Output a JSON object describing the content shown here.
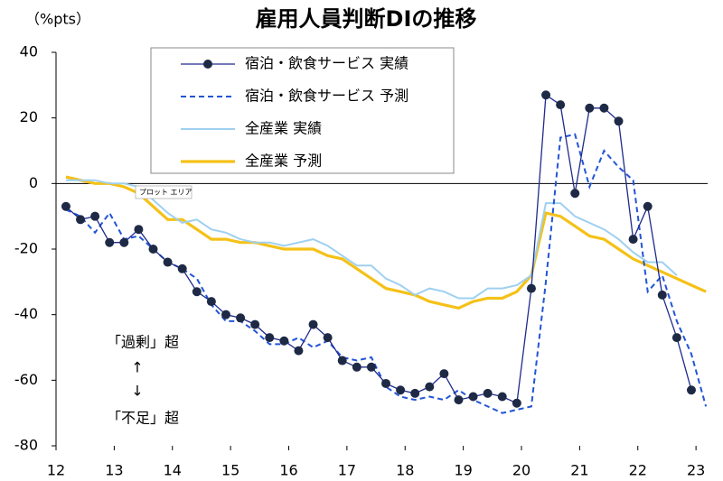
{
  "chart_data": {
    "type": "line",
    "title": "雇用人員判断DIの推移",
    "y_label": "（%pts）",
    "annotations": [
      "「過剰」超",
      "↑",
      "↓",
      "「不足」超"
    ],
    "tooltip": "プロット エリア",
    "x": [
      12.17,
      12.42,
      12.67,
      12.92,
      13.17,
      13.42,
      13.67,
      13.92,
      14.17,
      14.42,
      14.67,
      14.92,
      15.17,
      15.42,
      15.67,
      15.92,
      16.17,
      16.42,
      16.67,
      16.92,
      17.17,
      17.42,
      17.67,
      17.92,
      18.17,
      18.42,
      18.67,
      18.92,
      19.17,
      19.42,
      19.67,
      19.92,
      20.17,
      20.42,
      20.67,
      20.92,
      21.17,
      21.42,
      21.67,
      21.92,
      22.17,
      22.42,
      22.67,
      22.92,
      23.17
    ],
    "series": [
      {
        "name": "宿泊・飲食サービス 実績",
        "color": "#1f2a8c",
        "style": "solid",
        "marker": true,
        "values": [
          -7,
          -11,
          -10,
          -18,
          -18,
          -14,
          -20,
          -24,
          -26,
          -33,
          -36,
          -40,
          -41,
          -43,
          -47,
          -48,
          -51,
          -43,
          -47,
          -54,
          -56,
          -56,
          -61,
          -63,
          -64,
          -62,
          -58,
          -66,
          -65,
          -64,
          -65,
          -67,
          -32,
          27,
          24,
          -3,
          23,
          23,
          19,
          -17,
          -7,
          -34,
          -47,
          -63,
          null
        ]
      },
      {
        "name": "宿泊・飲食サービス 予測",
        "color": "#2255d6",
        "style": "dashed",
        "marker": false,
        "values": [
          -8,
          -10,
          -15,
          -9,
          -17,
          -16,
          -20,
          -24,
          -26,
          -29,
          -37,
          -42,
          -42,
          -45,
          -49,
          -49,
          -47,
          -50,
          -48,
          -53,
          -54,
          -53,
          -62,
          -65,
          -66,
          -65,
          -66,
          -63,
          -66,
          -68,
          -70,
          -69,
          -68,
          -30,
          14,
          15,
          -1,
          10,
          5,
          1,
          -33,
          -28,
          -42,
          -52,
          -68
        ]
      },
      {
        "name": "全産業 実績",
        "color": "#9fd0f0",
        "style": "solid",
        "marker": false,
        "values": [
          1,
          1,
          1,
          0,
          0,
          -1,
          -5,
          -9,
          -12,
          -11,
          -14,
          -15,
          -17,
          -18,
          -18,
          -19,
          -18,
          -17,
          -19,
          -22,
          -25,
          -25,
          -29,
          -31,
          -34,
          -32,
          -33,
          -35,
          -35,
          -32,
          -32,
          -31,
          -28,
          -6,
          -6,
          -10,
          -12,
          -14,
          -17,
          -21,
          -24,
          -24,
          -28,
          null,
          null
        ]
      },
      {
        "name": "全産業 予測",
        "color": "#f5c118",
        "style": "solid",
        "marker": false,
        "values": [
          2,
          1,
          0,
          0,
          -1,
          -3,
          -7,
          -11,
          -11,
          -14,
          -17,
          -17,
          -18,
          -18,
          -19,
          -20,
          -20,
          -20,
          -22,
          -23,
          -26,
          -29,
          -32,
          -33,
          -34,
          -36,
          -37,
          -38,
          -36,
          -35,
          -35,
          -33,
          -28,
          -9,
          -10,
          -13,
          -16,
          -17,
          -20,
          -23,
          -25,
          -27,
          -29,
          -31,
          -33
        ]
      }
    ],
    "xlim": [
      12,
      23.2
    ],
    "xticks": [
      12,
      13,
      14,
      15,
      16,
      17,
      18,
      19,
      20,
      21,
      22,
      23
    ],
    "ylim": [
      -80,
      40
    ],
    "yticks": [
      40,
      20,
      0,
      -20,
      -40,
      -60,
      -80
    ],
    "legend": "top-left"
  }
}
